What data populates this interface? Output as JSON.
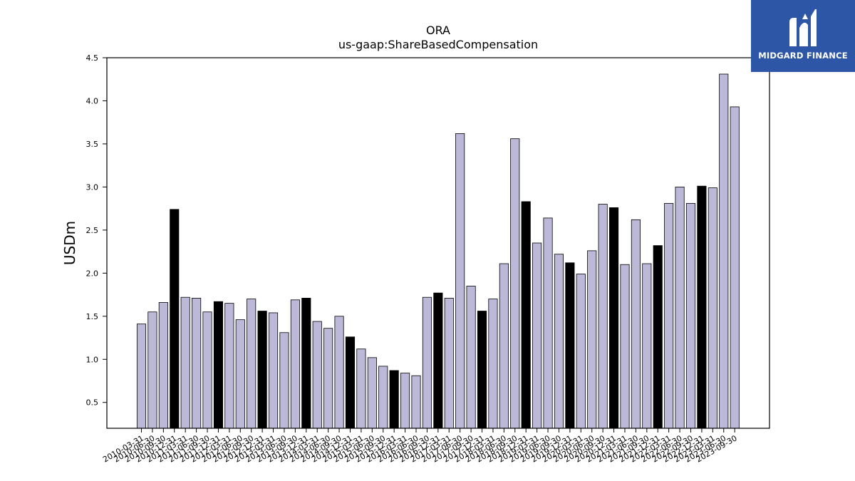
{
  "chart_data": {
    "type": "bar",
    "title": "ORA",
    "subtitle": "us-gaap:ShareBasedCompensation",
    "xlabel": "",
    "ylabel": "USDm",
    "ylim": [
      0.2,
      4.5
    ],
    "yticks": [
      "0.5",
      "1.0",
      "1.5",
      "2.0",
      "2.5",
      "3.0",
      "3.5",
      "4.0",
      "4.5"
    ],
    "grid": false,
    "categories": [
      "2010-03-31",
      "2010-06-30",
      "2010-09-30",
      "2010-12-31",
      "2011-03-31",
      "2011-06-30",
      "2011-09-30",
      "2011-12-31",
      "2012-03-31",
      "2012-06-30",
      "2012-09-30",
      "2012-12-31",
      "2013-03-31",
      "2013-06-30",
      "2013-09-30",
      "2013-12-31",
      "2014-03-31",
      "2014-06-30",
      "2014-09-30",
      "2014-12-31",
      "2015-03-31",
      "2015-06-30",
      "2015-09-30",
      "2015-12-31",
      "2016-03-31",
      "2016-06-30",
      "2016-09-30",
      "2016-12-31",
      "2017-03-31",
      "2017-06-30",
      "2017-09-30",
      "2017-12-31",
      "2018-03-31",
      "2018-06-30",
      "2018-09-30",
      "2018-12-31",
      "2019-03-31",
      "2019-06-30",
      "2019-09-30",
      "2019-12-31",
      "2020-03-31",
      "2020-06-30",
      "2020-09-30",
      "2020-12-31",
      "2021-03-31",
      "2021-06-30",
      "2021-09-30",
      "2021-12-31",
      "2022-03-31",
      "2022-06-30",
      "2022-09-30",
      "2022-12-31",
      "2023-03-31",
      "2023-06-30",
      "2023-09-30"
    ],
    "values": [
      1.41,
      1.55,
      1.66,
      2.74,
      1.72,
      1.71,
      1.55,
      1.67,
      1.65,
      1.46,
      1.7,
      1.56,
      1.54,
      1.31,
      1.69,
      1.71,
      1.44,
      1.36,
      1.5,
      1.26,
      1.12,
      1.02,
      0.92,
      0.87,
      0.84,
      0.81,
      1.72,
      1.77,
      1.71,
      3.62,
      1.85,
      1.56,
      1.7,
      2.11,
      3.56,
      2.83,
      2.35,
      2.64,
      2.22,
      2.12,
      1.99,
      2.26,
      2.8,
      2.76,
      2.1,
      2.62,
      2.11,
      2.32,
      2.81,
      3.0,
      2.81,
      3.01,
      2.99,
      4.31,
      3.93
    ],
    "highlight_color": "#000000",
    "bar_color": "#bcb9d8",
    "bar_edge_color": "#000000"
  },
  "brand": {
    "name": "MIDGARD FINANCE",
    "background": "#2d56a6",
    "icon": "midgard-logo-icon"
  }
}
